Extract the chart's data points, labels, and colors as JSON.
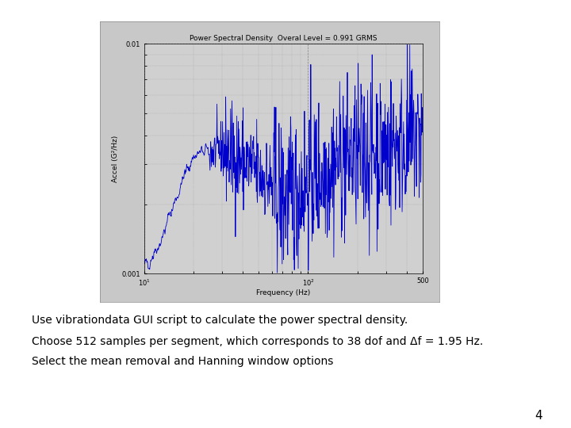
{
  "title": "Power Spectral Density  Overal Level = 0.991 GRMS",
  "xlabel": "Frequency (Hz)",
  "ylabel": "Accel (G²/Hz)",
  "xmin": 10,
  "xmax": 500,
  "ymin": 0.001,
  "ymax": 0.01,
  "line_color": "#0000cc",
  "slide_bg": "#ffffff",
  "plot_frame_bg": "#c8c8c8",
  "plot_area_bg": "#d0d0d0",
  "text_line1": "Use vibrationdata GUI script to calculate the power spectral density.",
  "text_line2": "Choose 512 samples per segment, which corresponds to 38 dof and Δf = 1.95 Hz.",
  "text_line3": "Select the mean removal and Hanning window options",
  "page_number": "4",
  "seed": 42
}
